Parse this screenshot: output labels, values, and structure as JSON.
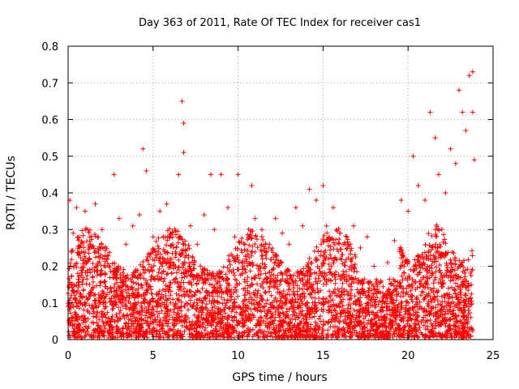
{
  "chart_data": {
    "type": "scatter",
    "title": "Day 363 of 2011, Rate Of TEC Index for receiver cas1",
    "xlabel": "GPS time / hours",
    "ylabel": "ROTI / TECUs",
    "xlim": [
      0,
      25
    ],
    "ylim": [
      0,
      0.8
    ],
    "x_ticks": [
      "0",
      "5",
      "10",
      "15",
      "20",
      "25"
    ],
    "y_ticks": [
      "0",
      "0.1",
      "0.2",
      "0.3",
      "0.4",
      "0.5",
      "0.6",
      "0.7",
      "0.8"
    ],
    "grid": true,
    "marker": "+",
    "color": "#ff0000",
    "series": [
      {
        "x": [
          0.1,
          0.3,
          0.5,
          0.8,
          1.0,
          1.3,
          1.6,
          2.0,
          2.3,
          2.7,
          3.0,
          3.4,
          3.8,
          4.2,
          4.4,
          4.6,
          5.0,
          5.4,
          5.8,
          6.2,
          6.5,
          6.7,
          6.8,
          6.8,
          7.2,
          7.6,
          8.0,
          8.4,
          8.6,
          9.0,
          9.4,
          9.8,
          10.0,
          10.4,
          10.8,
          11.0,
          11.4,
          11.8,
          12.2,
          12.6,
          13.0,
          13.4,
          13.8,
          14.2,
          14.6,
          15.0,
          15.2,
          15.6,
          16.0,
          16.4,
          16.8,
          17.2,
          17.6,
          18.0,
          18.4,
          18.8,
          19.2,
          19.6,
          20.0,
          20.3,
          20.6,
          21.0,
          21.3,
          21.6,
          21.8,
          22.2,
          22.5,
          22.8,
          23.0,
          23.2,
          23.4,
          23.6,
          23.8,
          23.8,
          23.9
        ],
        "y": [
          0.38,
          0.29,
          0.36,
          0.24,
          0.35,
          0.26,
          0.37,
          0.3,
          0.22,
          0.45,
          0.33,
          0.26,
          0.31,
          0.34,
          0.52,
          0.46,
          0.28,
          0.35,
          0.37,
          0.25,
          0.45,
          0.65,
          0.59,
          0.51,
          0.31,
          0.26,
          0.34,
          0.45,
          0.3,
          0.45,
          0.36,
          0.28,
          0.45,
          0.26,
          0.42,
          0.33,
          0.3,
          0.25,
          0.33,
          0.29,
          0.26,
          0.36,
          0.31,
          0.41,
          0.38,
          0.42,
          0.31,
          0.36,
          0.29,
          0.28,
          0.31,
          0.25,
          0.28,
          0.2,
          0.16,
          0.21,
          0.27,
          0.38,
          0.35,
          0.5,
          0.42,
          0.38,
          0.62,
          0.55,
          0.45,
          0.4,
          0.52,
          0.48,
          0.68,
          0.62,
          0.57,
          0.72,
          0.73,
          0.62,
          0.49
        ]
      }
    ]
  }
}
